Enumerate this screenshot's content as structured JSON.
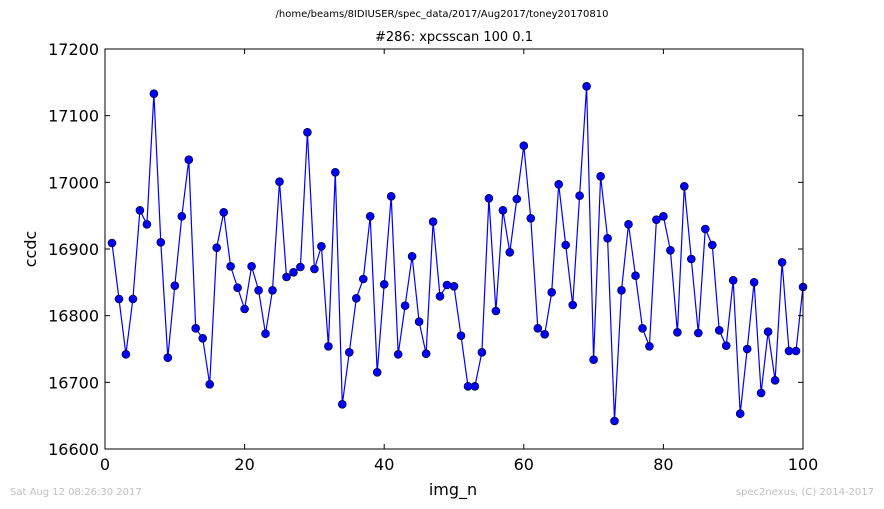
{
  "figure": {
    "subtitle": "/home/beams/8IDIUSER/spec_data/2017/Aug2017/toney20170810",
    "footer_left": "Sat Aug 12 08:26:30 2017",
    "footer_right": "spec2nexus, (C) 2014-2017"
  },
  "chart_data": {
    "type": "line",
    "title": "#286: xpcsscan 100 0.1",
    "xlabel": "img_n",
    "ylabel": "ccdc",
    "xlim": [
      0,
      100
    ],
    "ylim": [
      16600,
      17200
    ],
    "xticks": [
      0,
      20,
      40,
      60,
      80,
      100
    ],
    "yticks": [
      16600,
      16700,
      16800,
      16900,
      17000,
      17100,
      17200
    ],
    "grid": false,
    "markers": true,
    "color": "#0000ff",
    "series": [
      {
        "x": [
          1,
          2,
          3,
          4,
          5,
          6,
          7,
          8,
          9,
          10,
          11,
          12,
          13,
          14,
          15,
          16,
          17,
          18,
          19,
          20,
          21,
          22,
          23,
          24,
          25,
          26,
          27,
          28,
          29,
          30,
          31,
          32,
          33,
          34,
          35,
          36,
          37,
          38,
          39,
          40,
          41,
          42,
          43,
          44,
          45,
          46,
          47,
          48,
          49,
          50,
          51,
          52,
          53,
          54,
          55,
          56,
          57,
          58,
          59,
          60,
          61,
          62,
          63,
          64,
          65,
          66,
          67,
          68,
          69,
          70,
          71,
          72,
          73,
          74,
          75,
          76,
          77,
          78,
          79,
          80,
          81,
          82,
          83,
          84,
          85,
          86,
          87,
          88,
          89,
          90,
          91,
          92,
          93,
          94,
          95,
          96,
          97,
          98,
          99,
          100
        ],
        "y": [
          16909,
          16825,
          16742,
          16825,
          16958,
          16937,
          17133,
          16910,
          16737,
          16845,
          16949,
          17034,
          16781,
          16766,
          16697,
          16902,
          16955,
          16874,
          16842,
          16810,
          16874,
          16838,
          16773,
          16838,
          17001,
          16858,
          16865,
          16873,
          17075,
          16870,
          16904,
          16754,
          17015,
          16667,
          16745,
          16826,
          16855,
          16949,
          16715,
          16847,
          16979,
          16742,
          16815,
          16889,
          16791,
          16743,
          16941,
          16829,
          16846,
          16844,
          16770,
          16694,
          16694,
          16745,
          16976,
          16807,
          16958,
          16895,
          16975,
          17055,
          16946,
          16781,
          16772,
          16835,
          16997,
          16906,
          16816,
          16980,
          17144,
          16734,
          17009,
          16916,
          16642,
          16838,
          16937,
          16860,
          16781,
          16754,
          16944,
          16949,
          16898,
          16775,
          16994,
          16885,
          16774,
          16930,
          16906,
          16778,
          16755,
          16853,
          16653,
          16750,
          16850,
          16684,
          16776,
          16703,
          16880,
          16747,
          16747,
          16843
        ]
      }
    ]
  }
}
